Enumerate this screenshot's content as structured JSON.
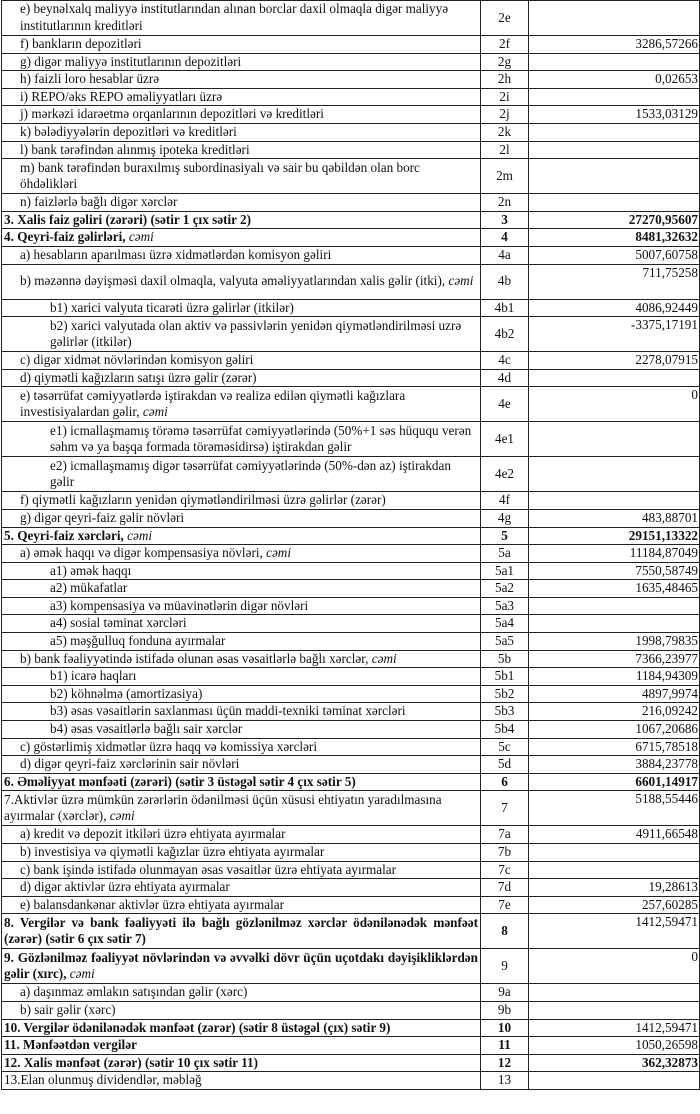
{
  "rows": [
    {
      "label": "e) beynəlxalq maliyyə institutlarından alınan borclar daxil olmaqla digər maliyyə institutlarının kreditləri",
      "code": "2e",
      "value": "",
      "level": 1,
      "double": true
    },
    {
      "label": "f) bankların depozitləri",
      "code": "2f",
      "value": "3286,57266",
      "level": 1
    },
    {
      "label": "g) digər maliyyə institutlarının depozitləri",
      "code": "2g",
      "value": "",
      "level": 1
    },
    {
      "label": "h) faizli loro hesablar üzrə",
      "code": "2h",
      "value": "0,02653",
      "level": 1
    },
    {
      "label": "i) REPO/əks REPO əməliyyatları üzrə",
      "code": "2i",
      "value": "",
      "level": 1
    },
    {
      "label": "j) mərkəzi idarəetmə orqanlarının depozitləri və kreditləri",
      "code": "2j",
      "value": "1533,03129",
      "level": 1
    },
    {
      "label": "k) bələdiyyələrin depozitləri və kreditləri",
      "code": "2k",
      "value": "",
      "level": 1
    },
    {
      "label": "l) bank tərəfindən alınmış ipoteka kreditləri",
      "code": "2l",
      "value": "",
      "level": 1
    },
    {
      "label": "m) bank tərəfindən buraxılmış subordinasiyalı və sair bu qəbildən olan borc öhdəlikləri",
      "code": "2m",
      "value": "",
      "level": 1,
      "double": true
    },
    {
      "label": "n) faizlərlə bağlı digər xərclər",
      "code": "2n",
      "value": "",
      "level": 1
    },
    {
      "label": "3. Xalis faiz gəliri (zərəri) (sətir 1 çıx sətir 2)",
      "code": "3",
      "value": "27270,95607",
      "level": 0,
      "bold": true,
      "bold_value": true
    },
    {
      "label": "4. Qeyri-faiz gəlirləri,",
      "italic": "cəmi",
      "code": "4",
      "value": "8481,32632",
      "level": 0,
      "bold": true,
      "bold_value": true
    },
    {
      "label": "a) hesabların aparılması üzrə xidmətlərdən komisyon gəliri",
      "code": "4a",
      "value": "5007,60758",
      "level": 1
    },
    {
      "label": "b) məzənnə dəyişməsi daxil olmaqla, valyuta əməliyyatlarından xalis gəlir (itki),",
      "italic": "cəmi",
      "code": "4b",
      "value": "711,75258",
      "level": 1,
      "double": true
    },
    {
      "label": "b1) xarici valyuta ticarəti üzrə gəlirlər (itkilər)",
      "code": "4b1",
      "value": "4086,92449",
      "level": 2
    },
    {
      "label": "b2) xarici valyutada olan aktiv və passivlərin yenidən qiymətləndirilməsi uzrə gəlirlər (itkilər)",
      "code": "4b2",
      "value": "-3375,17191",
      "level": 2,
      "double": true
    },
    {
      "label": "c) digər xidmət növlərindən komisyon gəliri",
      "code": "4c",
      "value": "2278,07915",
      "level": 1
    },
    {
      "label": "d) qiymətli kağızların satışı üzrə gəlir (zərər)",
      "code": "4d",
      "value": "",
      "level": 1
    },
    {
      "label": "e) təsərrüfat cəmiyyətlərdə iştirakdan və realizə edilən qiymətli kağızlara investisiyalardan gəlir,",
      "italic": "cəmi",
      "code": "4e",
      "value": "0",
      "level": 1,
      "double": true
    },
    {
      "label": "e1) icmallaşmamış törəmə təsərrüfat cəmiyyətlərində  (50%+1 səs hüququ verən səhm və ya başqa formada törəməsidirsə) iştirakdan gəlir",
      "code": "4e1",
      "value": "",
      "level": 2,
      "double": true
    },
    {
      "label": "e2) icmallaşmamış digər təsərrüfat cəmiyyətlərində (50%-dən az) iştirakdan gəlir",
      "code": "4e2",
      "value": "",
      "level": 2,
      "double": true
    },
    {
      "label": "f) qiymətli kağızların yenidən qiymətləndirilməsi üzrə gəlirlər (zərər)",
      "code": "4f",
      "value": "",
      "level": 1
    },
    {
      "label": "g) digər qeyri-faiz gəlir növləri",
      "code": "4g",
      "value": "483,88701",
      "level": 1
    },
    {
      "label": "5. Qeyri-faiz xərcləri,",
      "italic": "cəmi",
      "code": "5",
      "value": "29151,13322",
      "level": 0,
      "bold": true,
      "bold_value": true
    },
    {
      "label": "a) əmək haqqı və digər kompensasiya növləri,",
      "italic": "cəmi",
      "code": "5a",
      "value": "11184,87049",
      "level": 1
    },
    {
      "label": "a1) əmək haqqı",
      "code": "5a1",
      "value": "7550,58749",
      "level": 2
    },
    {
      "label": "a2) mükafatlar",
      "code": "5a2",
      "value": "1635,48465",
      "level": 2
    },
    {
      "label": "a3) kompensasiya və müavinətlərin digər növləri",
      "code": "5a3",
      "value": "",
      "level": 2
    },
    {
      "label": "a4) sosial təminat xərcləri",
      "code": "5a4",
      "value": "",
      "level": 2
    },
    {
      "label": "a5) məşğulluq fonduna ayırmalar",
      "code": "5a5",
      "value": "1998,79835",
      "level": 2
    },
    {
      "label": "b) bank fəaliyyətində istifadə olunan əsas vəsaitlərlə bağlı xərclər,",
      "italic": "cəmi",
      "code": "5b",
      "value": "7366,23977",
      "level": 1
    },
    {
      "label": "b1) icarə haqları",
      "code": "5b1",
      "value": "1184,94309",
      "level": 2
    },
    {
      "label": "b2) köhnəlmə (amortizasiya)",
      "code": "5b2",
      "value": "4897,9974",
      "level": 2
    },
    {
      "label": "b3) əsas vəsaitlərin saxlanması üçün maddi-texniki təminat xərcləri",
      "code": "5b3",
      "value": "216,09242",
      "level": 2
    },
    {
      "label": "b4) əsas vəsaitlərlə bağlı sair xərclər",
      "code": "5b4",
      "value": "1067,20686",
      "level": 2
    },
    {
      "label": "c) göstərlimiş xidmətlər üzrə haqq və komissiya xərcləri",
      "code": "5c",
      "value": "6715,78518",
      "level": 1
    },
    {
      "label": "d) digər qeyri-faiz xərclərinin sair növləri",
      "code": "5d",
      "value": "3884,23778",
      "level": 1
    },
    {
      "label": "6. Əməliyyat mənfəəti (zərəri) (sətir 3 üstəgəl sətir 4 çıx sətir 5)",
      "code": "6",
      "value": "6601,14917",
      "level": 0,
      "bold": true,
      "bold_value": true
    },
    {
      "label": "7.Aktivlər üzrə mümkün zərərlərin ödənilməsi üçün xüsusi ehtiyatın yaradılmasına ayırmalar (xərclər),",
      "italic": "cəmi",
      "code": "7",
      "value": "5188,55446",
      "level": 0,
      "double": true
    },
    {
      "label": "a) kredit və depozit itkiləri üzrə ehtiyata ayırmalar",
      "code": "7a",
      "value": "4911,66548",
      "level": 1
    },
    {
      "label": "b) investisiya və qiymətli kağızlar üzrə ehtiyata ayırmalar",
      "code": "7b",
      "value": "",
      "level": 1
    },
    {
      "label": "c) bank işində istifadə olunmayan əsas vəsaitlər üzrə ehtiyata ayırmalar",
      "code": "7c",
      "value": "",
      "level": 1
    },
    {
      "label": "d) digər aktivlər üzrə ehtiyata ayırmalar",
      "code": "7d",
      "value": "19,28613",
      "level": 1
    },
    {
      "label": "e) balansdankənar aktivlər üzrə ehtiyata ayırmalar",
      "code": "7e",
      "value": "257,60285",
      "level": 1
    },
    {
      "label": "8. Vergilər və bank fəaliyyəti ilə bağlı gözlənilməz xərclər ödənilənədək mənfəət (zərər) (sətir 6 çıx sətir 7)",
      "code": "8",
      "value": "1412,59471",
      "level": 0,
      "bold": true,
      "double": true
    },
    {
      "label": "9. Gözlənilməz fəaliyyət növlərindən və əvvəlki dövr üçün uçotdakı dəyişikliklərdən gəlir (xırc),",
      "italic": "cəmi",
      "code": "9",
      "value": "0",
      "level": 0,
      "bold": true,
      "double": true,
      "bold_code": false
    },
    {
      "label": "a) daşınmaz əmlakın satışından gəlir (xərc)",
      "code": "9a",
      "value": "",
      "level": 1
    },
    {
      "label": "b) sair gəlir (xərc)",
      "code": "9b",
      "value": "",
      "level": 1
    },
    {
      "label": "10. Vergilər ödənilənədək mənfəət (zərər) (sətir 8 üstəgəl (çıx) sətir 9)",
      "code": "10",
      "value": "1412,59471",
      "level": 0,
      "bold": true
    },
    {
      "label": "11. Mənfəətdən vergilər",
      "code": "11",
      "value": "1050,26598",
      "level": 0,
      "bold": true
    },
    {
      "label": "12. Xalis mənfəət (zərər) (sətir 10 çıx sətir 11)",
      "code": "12",
      "value": "362,32873",
      "level": 0,
      "bold": true,
      "bold_value": true
    },
    {
      "label": "13.Elan olunmuş dividendlər, məbləğ",
      "code": "13",
      "value": "",
      "level": 0
    }
  ]
}
